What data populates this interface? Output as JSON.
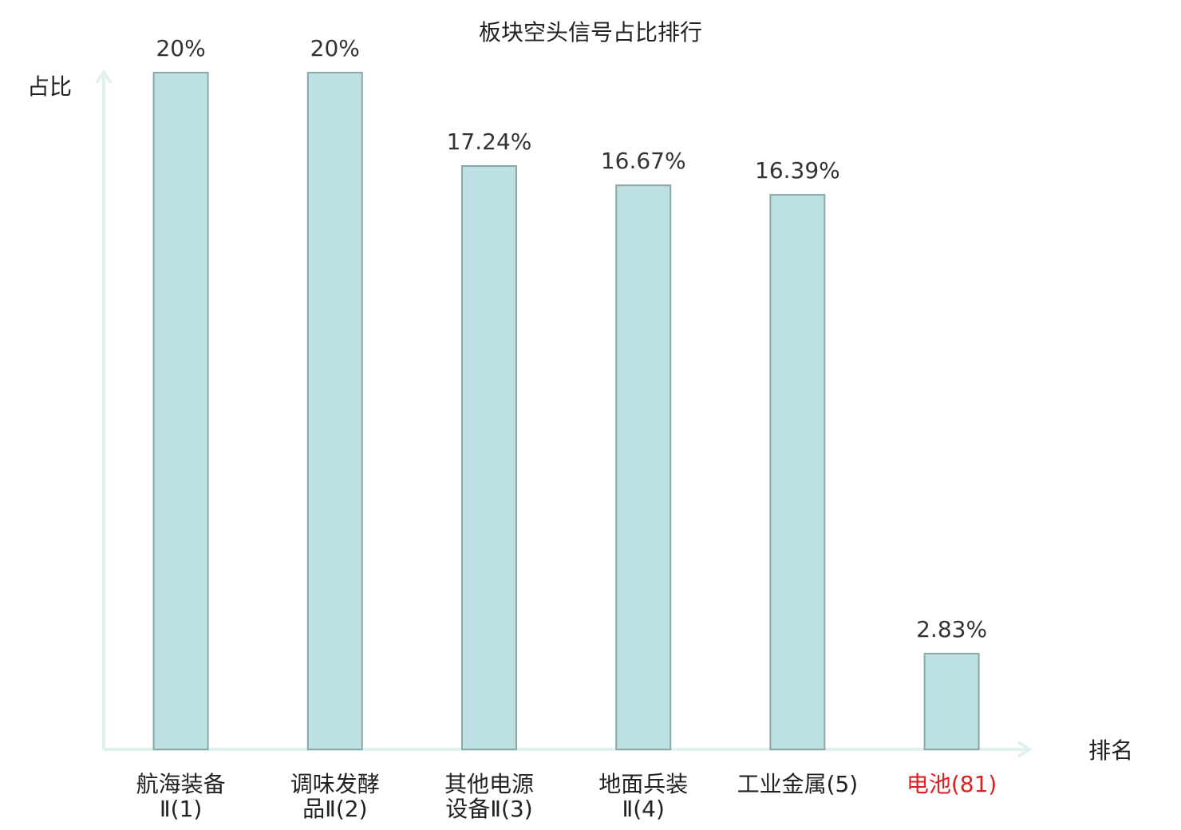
{
  "chart_data": {
    "type": "bar",
    "title": "板块空头信号占比排行",
    "y_label": "占比",
    "x_label": "排名",
    "categories": [
      "航海装备Ⅱ(1)",
      "调味发酵品Ⅱ(2)",
      "其他电源设备Ⅱ(3)",
      "地面兵装Ⅱ(4)",
      "工业金属(5)",
      "电池(81)"
    ],
    "category_label_colors": [
      "#222222",
      "#222222",
      "#222222",
      "#222222",
      "#222222",
      "#e02020"
    ],
    "values": [
      20,
      20,
      17.24,
      16.67,
      16.39,
      2.83
    ],
    "value_labels": [
      "20%",
      "20%",
      "17.24%",
      "16.67%",
      "16.39%",
      "2.83%"
    ],
    "color": "#bde0e3",
    "edge_color": "#8aa7aa",
    "axis_color": "#dff2ef",
    "ylim": [
      0,
      20
    ]
  }
}
